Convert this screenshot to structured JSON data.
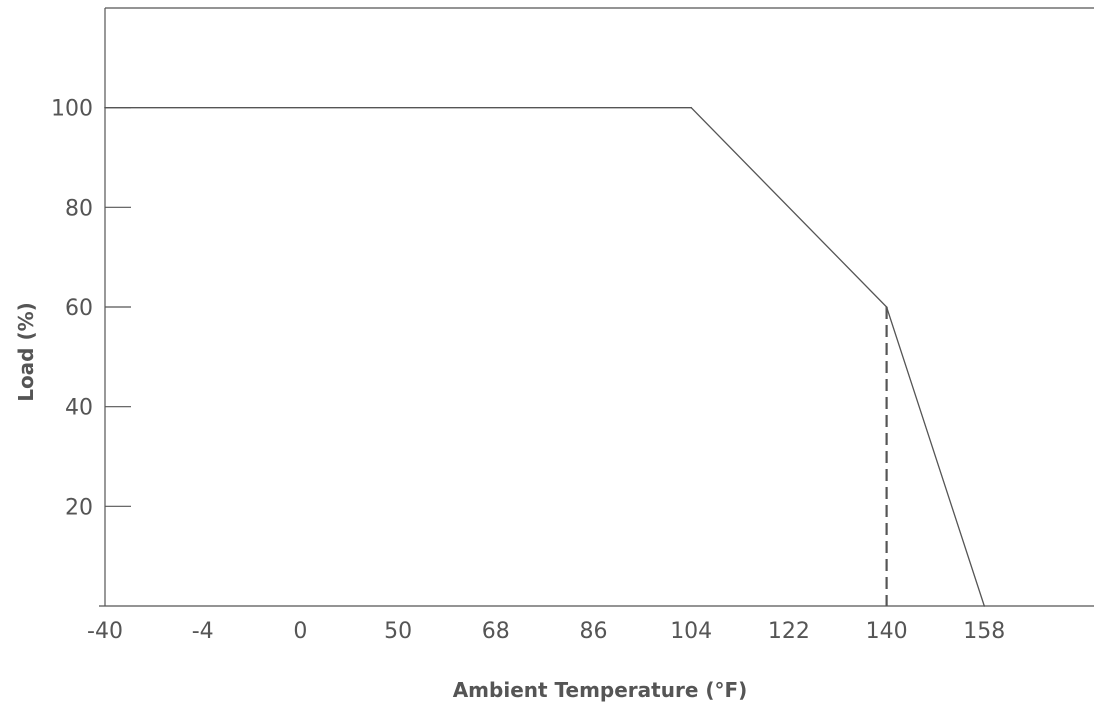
{
  "chart_data": {
    "type": "line",
    "title": "",
    "xlabel": "Ambient Temperature (°F)",
    "ylabel": "Load (%)",
    "x_tick_labels": [
      "-40",
      "-4",
      "0",
      "50",
      "68",
      "86",
      "104",
      "122",
      "140",
      "158"
    ],
    "y_ticks": [
      20,
      40,
      60,
      80,
      100
    ],
    "y_tick_labels": [
      "20",
      "40",
      "60",
      "80",
      "100"
    ],
    "ylim": [
      0,
      120
    ],
    "x_scale": "categorical (evenly spaced tick labels)",
    "series": [
      {
        "values": [
          {
            "x": "-40",
            "y": 100
          },
          {
            "x": "104",
            "y": 100
          },
          {
            "x": "140",
            "y": 60
          },
          {
            "x": "158",
            "y": 0
          }
        ]
      }
    ],
    "reference_lines": [
      {
        "style": "dashed",
        "x": "140",
        "y_from": 0,
        "y_to": 60
      }
    ],
    "grid": false,
    "legend": "none",
    "colors": {
      "line": "#555555",
      "axis": "#555555",
      "text": "#555555"
    }
  }
}
